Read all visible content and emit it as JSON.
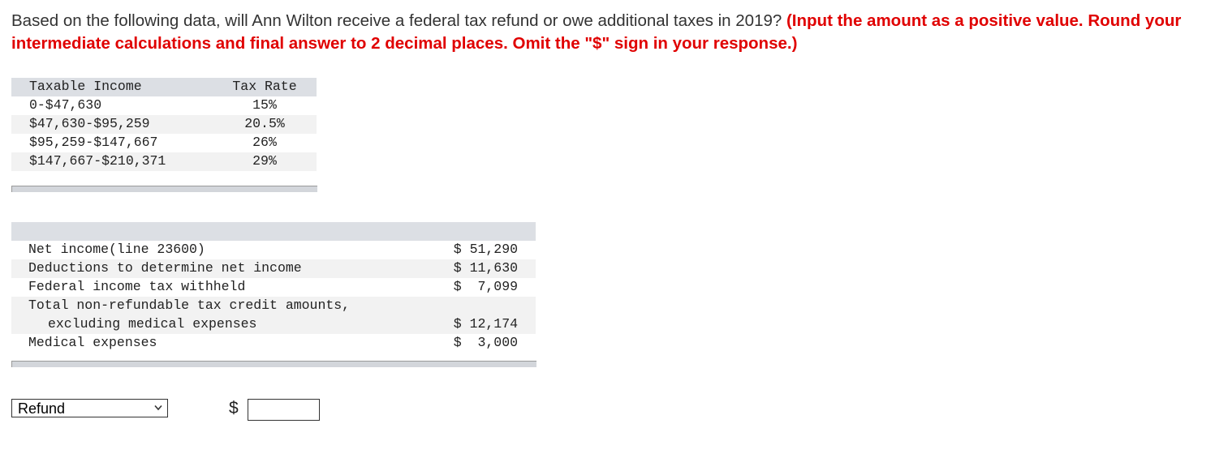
{
  "question": {
    "text": "Based on the following data, will Ann Wilton receive a federal tax refund or owe additional taxes in 2019? ",
    "instruction": "(Input the amount as a positive value. Round your intermediate calculations and final answer to 2 decimal places. Omit the \"$\" sign in your response.)"
  },
  "tax_table": {
    "headers": [
      "Taxable Income",
      "Tax Rate"
    ],
    "rows": [
      [
        "0-$47,630",
        "15%"
      ],
      [
        "$47,630-$95,259",
        "20.5%"
      ],
      [
        "$95,259-$147,667",
        "26%"
      ],
      [
        "$147,667-$210,371",
        "29%"
      ]
    ]
  },
  "data_table": {
    "rows": [
      {
        "label": "Net income(line 23600)",
        "value": "$ 51,290"
      },
      {
        "label": "Deductions to determine net income",
        "value": "$ 11,630"
      },
      {
        "label": "Federal income tax withheld",
        "value": "$  7,099"
      },
      {
        "label": "Total non-refundable tax credit amounts,",
        "value": ""
      },
      {
        "label": "excluding medical expenses",
        "value": "$ 12,174"
      },
      {
        "label": "Medical expenses",
        "value": "$  3,000"
      }
    ]
  },
  "answer": {
    "select_value": "Refund",
    "currency_symbol": "$",
    "amount_value": ""
  },
  "icons": {
    "dropdown": "chevron-down-icon"
  }
}
